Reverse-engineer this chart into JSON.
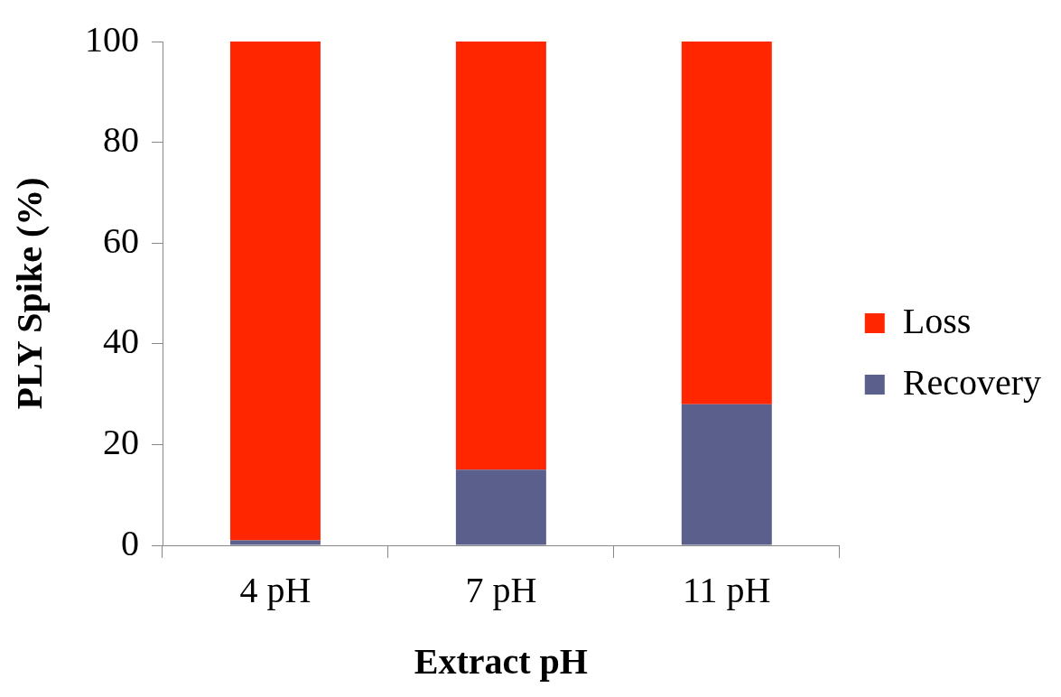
{
  "chart_data": {
    "type": "bar",
    "stacked": true,
    "xlabel": "Extract pH",
    "ylabel": "PLY Spike (%)",
    "categories": [
      "4 pH",
      "7 pH",
      "11 pH"
    ],
    "series": [
      {
        "name": "Recovery",
        "color": "#5b5f8c",
        "values": [
          1,
          15,
          28
        ]
      },
      {
        "name": "Loss",
        "color": "#ff2600",
        "values": [
          99,
          85,
          72
        ]
      }
    ],
    "ylim": [
      0,
      100
    ],
    "yticks": [
      0,
      20,
      40,
      60,
      80,
      100
    ],
    "legend": "right"
  }
}
